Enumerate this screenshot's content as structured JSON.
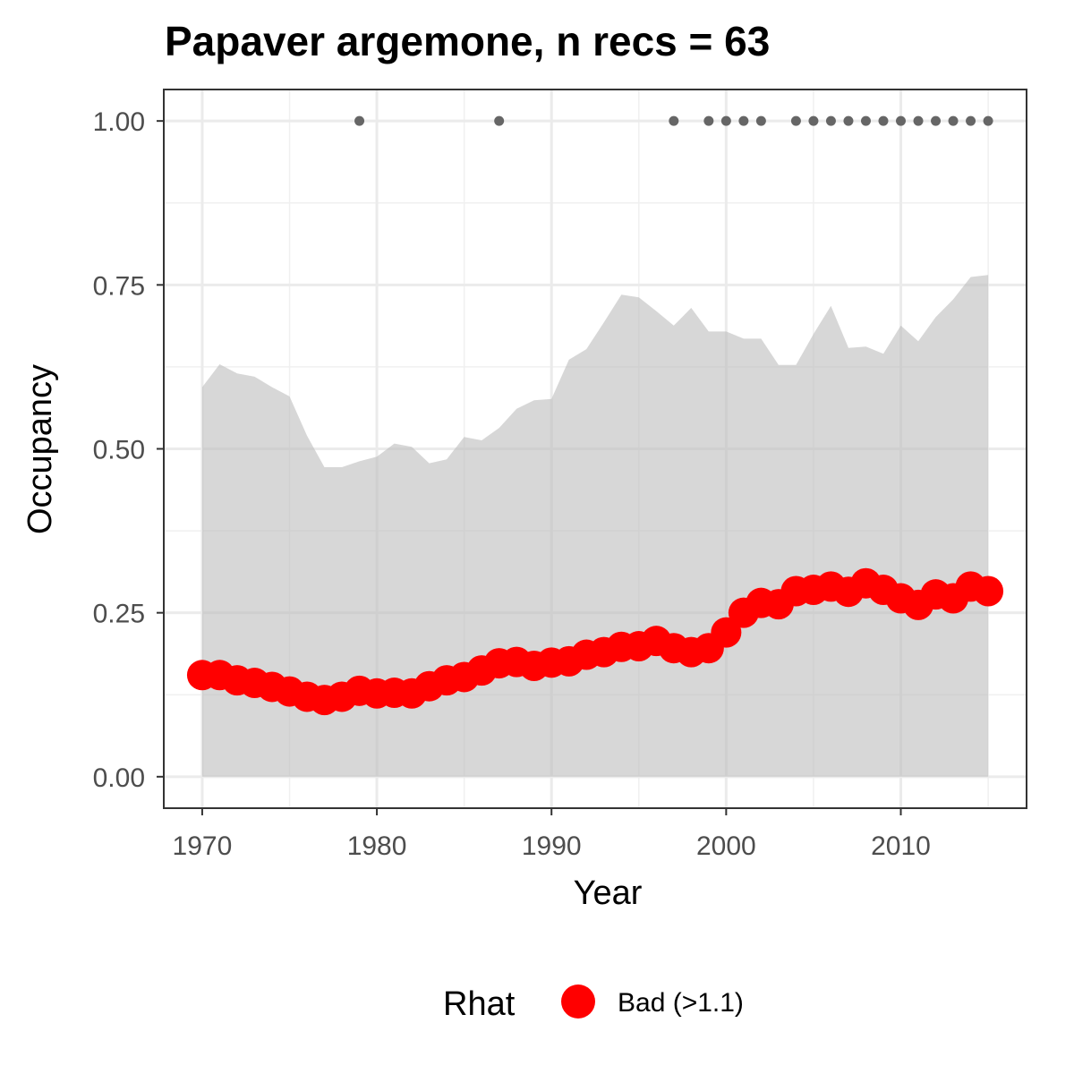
{
  "chart_data": {
    "type": "line",
    "title": "Papaver argemone, n recs = 63",
    "xlabel": "Year",
    "ylabel": "Occupancy",
    "xlim": [
      1967.8,
      2017.2
    ],
    "ylim": [
      -0.048,
      1.048
    ],
    "x_ticks": [
      1970,
      1980,
      1990,
      2000,
      2010
    ],
    "x_tick_labels": [
      "1970",
      "1980",
      "1990",
      "2000",
      "2010"
    ],
    "y_ticks": [
      0,
      0.25,
      0.5,
      0.75,
      1.0
    ],
    "y_tick_labels": [
      "0.00",
      "0.25",
      "0.50",
      "0.75",
      "1.00"
    ],
    "grid": true,
    "legend": {
      "position": "bottom",
      "title": "Rhat",
      "entries": [
        {
          "label": "Bad (>1.1)",
          "color": "#ff0000"
        }
      ]
    },
    "colors": {
      "estimate": "#ff0000",
      "ribbon": "#d6d6d6",
      "records": "#666666"
    },
    "x": [
      1970,
      1971,
      1972,
      1973,
      1974,
      1975,
      1976,
      1977,
      1978,
      1979,
      1980,
      1981,
      1982,
      1983,
      1984,
      1985,
      1986,
      1987,
      1988,
      1989,
      1990,
      1991,
      1992,
      1993,
      1994,
      1995,
      1996,
      1997,
      1998,
      1999,
      2000,
      2001,
      2002,
      2003,
      2004,
      2005,
      2006,
      2007,
      2008,
      2009,
      2010,
      2011,
      2012,
      2013,
      2014,
      2015
    ],
    "series": [
      {
        "type": "line-points",
        "values": [
          0.155,
          0.155,
          0.147,
          0.143,
          0.137,
          0.13,
          0.122,
          0.117,
          0.122,
          0.131,
          0.127,
          0.128,
          0.127,
          0.138,
          0.147,
          0.152,
          0.162,
          0.173,
          0.175,
          0.169,
          0.174,
          0.176,
          0.186,
          0.19,
          0.198,
          0.199,
          0.207,
          0.196,
          0.19,
          0.196,
          0.22,
          0.25,
          0.265,
          0.263,
          0.283,
          0.285,
          0.29,
          0.282,
          0.295,
          0.285,
          0.272,
          0.262,
          0.278,
          0.272,
          0.29,
          0.283
        ]
      },
      {
        "type": "ribbon",
        "lower": [
          0,
          0,
          0,
          0,
          0,
          0,
          0,
          0,
          0,
          0,
          0,
          0,
          0,
          0,
          0,
          0,
          0,
          0,
          0,
          0,
          0,
          0,
          0,
          0,
          0,
          0,
          0,
          0,
          0,
          0,
          0,
          0,
          0,
          0,
          0,
          0,
          0,
          0,
          0,
          0,
          0,
          0,
          0,
          0,
          0,
          0
        ],
        "upper": [
          0.594,
          0.629,
          0.615,
          0.61,
          0.594,
          0.58,
          0.52,
          0.472,
          0.472,
          0.481,
          0.488,
          0.508,
          0.503,
          0.478,
          0.484,
          0.518,
          0.513,
          0.532,
          0.561,
          0.574,
          0.576,
          0.636,
          0.652,
          0.693,
          0.735,
          0.731,
          0.71,
          0.688,
          0.715,
          0.679,
          0.679,
          0.668,
          0.668,
          0.628,
          0.628,
          0.675,
          0.718,
          0.654,
          0.656,
          0.645,
          0.688,
          0.664,
          0.701,
          0.728,
          0.762,
          0.765
        ]
      },
      {
        "type": "record-points",
        "x": [
          1979,
          1987,
          1997,
          1999,
          2000,
          2001,
          2002,
          2004,
          2005,
          2006,
          2007,
          2008,
          2009,
          2010,
          2011,
          2012,
          2013,
          2014,
          2015
        ],
        "values": [
          1,
          1,
          1,
          1,
          1,
          1,
          1,
          1,
          1,
          1,
          1,
          1,
          1,
          1,
          1,
          1,
          1,
          1,
          1
        ]
      }
    ]
  }
}
